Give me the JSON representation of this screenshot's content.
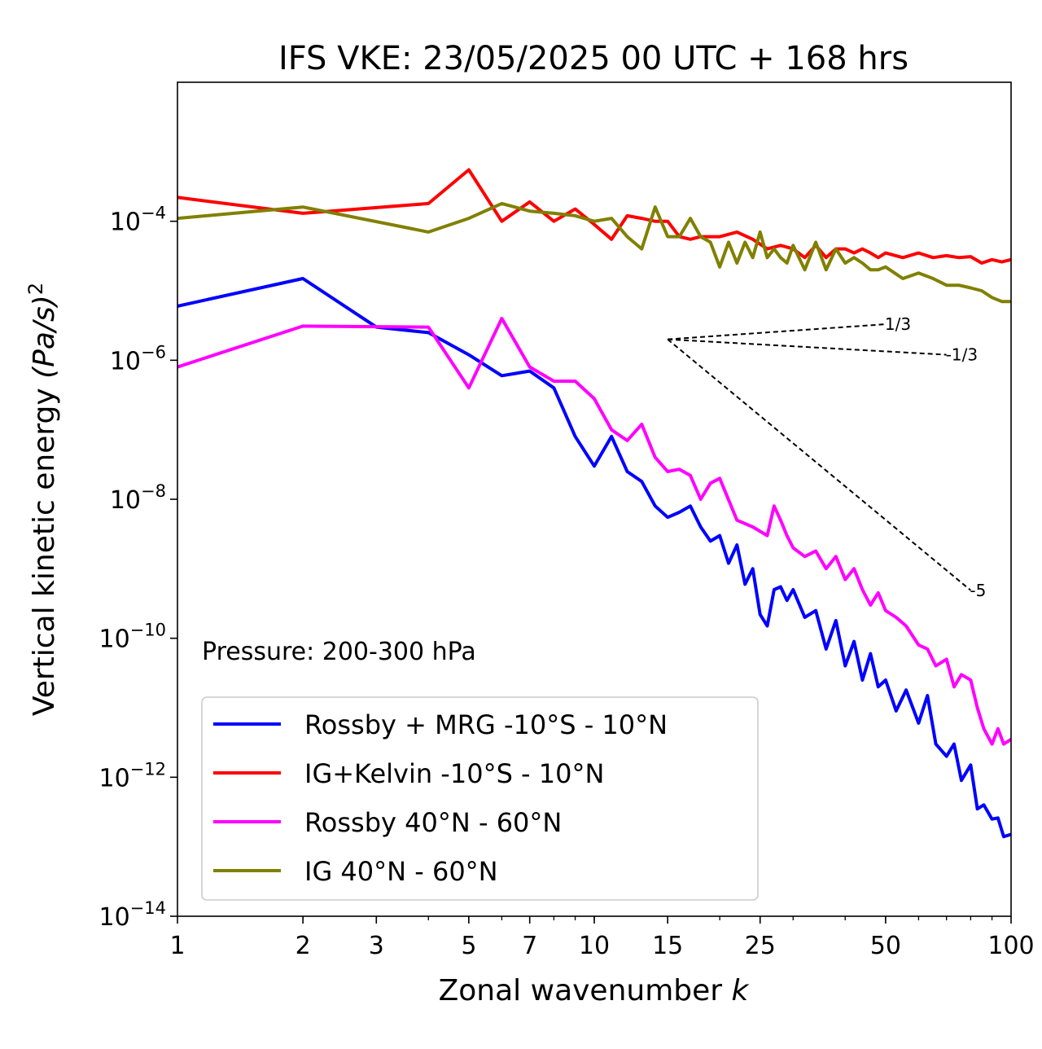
{
  "chart_data": {
    "type": "line",
    "title": "IFS VKE: 23/05/2025 00 UTC + 168 hrs",
    "xlabel_text": "Zonal wavenumber ",
    "xlabel_italic": "k",
    "ylabel_text": "Vertical kinetic energy ",
    "ylabel_italic": "(Pa/s)",
    "ylabel_sup": "2",
    "xscale": "log",
    "yscale": "log",
    "xlim": [
      1,
      100
    ],
    "ylim": [
      1e-14,
      0.01
    ],
    "x_ticks": [
      {
        "value": 1,
        "label": "1"
      },
      {
        "value": 2,
        "label": "2"
      },
      {
        "value": 3,
        "label": "3"
      },
      {
        "value": 5,
        "label": "5"
      },
      {
        "value": 7,
        "label": "7"
      },
      {
        "value": 10,
        "label": "10"
      },
      {
        "value": 15,
        "label": "15"
      },
      {
        "value": 25,
        "label": "25"
      },
      {
        "value": 50,
        "label": "50"
      },
      {
        "value": 100,
        "label": "100"
      }
    ],
    "y_ticks": [
      {
        "value": 0.0001,
        "base": "10",
        "exp": "−4"
      },
      {
        "value": 1e-06,
        "base": "10",
        "exp": "−6"
      },
      {
        "value": 1e-08,
        "base": "10",
        "exp": "−8"
      },
      {
        "value": 1e-10,
        "base": "10",
        "exp": "−10"
      },
      {
        "value": 1e-12,
        "base": "10",
        "exp": "−12"
      },
      {
        "value": 1e-14,
        "base": "10",
        "exp": "−14"
      }
    ],
    "annotation": "Pressure: 200-300 hPa",
    "legend_position": "lower-left",
    "grid": false,
    "reference_lines": [
      {
        "label": "1/3",
        "x": [
          15,
          50
        ],
        "y": [
          2e-06,
          3.3e-06
        ]
      },
      {
        "label": "-1/3",
        "x": [
          15,
          70
        ],
        "y": [
          2e-06,
          1.2e-06
        ]
      },
      {
        "label": "-5",
        "x": [
          15,
          80
        ],
        "y": [
          2e-06,
          4.9e-10
        ]
      }
    ],
    "series": [
      {
        "name": "Rossby + MRG -10°S - 10°N",
        "color": "#0000ff",
        "x": [
          1,
          2,
          3,
          4,
          5,
          6,
          7,
          8,
          9,
          10,
          11,
          12,
          13,
          14,
          15,
          16,
          17,
          18,
          19,
          20,
          21,
          22,
          23,
          24,
          25,
          26,
          27,
          28,
          29,
          30,
          32,
          34,
          36,
          38,
          40,
          42,
          44,
          46,
          48,
          50,
          53,
          56,
          60,
          63,
          66,
          70,
          73,
          76,
          80,
          83,
          86,
          90,
          93,
          96,
          100
        ],
        "y": [
          6e-06,
          1.5e-05,
          3e-06,
          2.5e-06,
          1.2e-06,
          6e-07,
          7e-07,
          4e-07,
          8e-08,
          3e-08,
          8e-08,
          2.5e-08,
          1.8e-08,
          8e-09,
          5.5e-09,
          6.5e-09,
          8e-09,
          4e-09,
          2.5e-09,
          3e-09,
          1.2e-09,
          2.2e-09,
          6e-10,
          1e-09,
          2.2e-10,
          1.5e-10,
          5e-10,
          5.5e-10,
          3.5e-10,
          5e-10,
          2e-10,
          2.5e-10,
          7e-11,
          1.8e-10,
          4e-11,
          9e-11,
          2.5e-11,
          6e-11,
          2e-11,
          2.5e-11,
          9e-12,
          1.8e-11,
          6e-12,
          1.5e-11,
          3e-12,
          2e-12,
          3e-12,
          9e-13,
          1.5e-12,
          3.5e-13,
          4e-13,
          2.5e-13,
          2.6e-13,
          1.4e-13,
          1.5e-13
        ]
      },
      {
        "name": "IG+Kelvin -10°S - 10°N",
        "color": "#ff0000",
        "x": [
          1,
          2,
          4,
          5,
          6,
          7,
          8,
          9,
          10,
          11,
          12,
          13,
          14,
          15,
          16,
          17,
          18,
          20,
          22,
          24,
          26,
          28,
          30,
          32,
          34,
          36,
          38,
          40,
          42,
          44,
          46,
          48,
          50,
          55,
          60,
          65,
          70,
          75,
          80,
          85,
          90,
          95,
          100
        ],
        "y": [
          0.00022,
          0.00013,
          0.00018,
          0.00055,
          0.0001,
          0.00019,
          0.0001,
          0.00015,
          9e-05,
          5.5e-05,
          0.00012,
          0.00011,
          0.0001,
          0.0001,
          6e-05,
          5.5e-05,
          6e-05,
          6e-05,
          7e-05,
          5.5e-05,
          4e-05,
          4.5e-05,
          4e-05,
          3e-05,
          4.5e-05,
          3e-05,
          4e-05,
          4e-05,
          3.5e-05,
          4e-05,
          3.5e-05,
          3e-05,
          3.5e-05,
          3e-05,
          3.5e-05,
          3e-05,
          3.2e-05,
          3e-05,
          3.1e-05,
          2.5e-05,
          2.8e-05,
          2.6e-05,
          2.8e-05
        ]
      },
      {
        "name": "Rossby 40°N - 60°N",
        "color": "#ff00ff",
        "x": [
          1,
          2,
          4,
          5,
          6,
          7,
          8,
          9,
          10,
          11,
          12,
          13,
          14,
          15,
          16,
          17,
          18,
          19,
          20,
          22,
          24,
          26,
          27,
          28,
          29,
          30,
          32,
          34,
          36,
          38,
          40,
          42,
          44,
          46,
          48,
          50,
          53,
          56,
          60,
          63,
          66,
          70,
          73,
          76,
          80,
          83,
          86,
          90,
          93,
          96,
          100
        ],
        "y": [
          8e-07,
          3.1e-06,
          3e-06,
          4e-07,
          4e-06,
          8e-07,
          5e-07,
          5e-07,
          2.8e-07,
          1e-07,
          7e-08,
          1.2e-07,
          4e-08,
          2.5e-08,
          2.7e-08,
          2.2e-08,
          1e-08,
          1.7e-08,
          2e-08,
          5e-09,
          4e-09,
          3e-09,
          8e-09,
          5e-09,
          3e-09,
          2e-09,
          1.5e-09,
          1.8e-09,
          1e-09,
          1.5e-09,
          7e-10,
          1e-09,
          5e-10,
          3e-10,
          4.5e-10,
          2.5e-10,
          2e-10,
          1.5e-10,
          8e-11,
          7e-11,
          4e-11,
          5e-11,
          2e-11,
          3e-11,
          2.5e-11,
          1e-11,
          5e-12,
          3e-12,
          5e-12,
          3e-12,
          3.5e-12
        ]
      },
      {
        "name": "IG 40°N - 60°N",
        "color": "#808000",
        "x": [
          1,
          2,
          4,
          5,
          6,
          7,
          8,
          9,
          10,
          11,
          12,
          13,
          14,
          15,
          16,
          17,
          18,
          19,
          20,
          21,
          22,
          23,
          24,
          25,
          26,
          27,
          28,
          29,
          30,
          32,
          34,
          36,
          38,
          40,
          42,
          44,
          46,
          48,
          50,
          55,
          60,
          65,
          70,
          75,
          80,
          85,
          90,
          95,
          100
        ],
        "y": [
          0.00011,
          0.00016,
          7e-05,
          0.00011,
          0.00018,
          0.00014,
          0.00013,
          0.00012,
          0.0001,
          0.00011,
          6e-05,
          4e-05,
          0.00016,
          6e-05,
          6e-05,
          0.00011,
          6e-05,
          5e-05,
          2.2e-05,
          5e-05,
          2.5e-05,
          5e-05,
          3e-05,
          7e-05,
          3e-05,
          4e-05,
          3e-05,
          2.5e-05,
          4.5e-05,
          2e-05,
          5e-05,
          2e-05,
          4e-05,
          2.5e-05,
          3e-05,
          2.5e-05,
          2e-05,
          2e-05,
          2.2e-05,
          1.5e-05,
          1.8e-05,
          1.5e-05,
          1.2e-05,
          1.2e-05,
          1.1e-05,
          1e-05,
          8e-06,
          7e-06,
          7e-06
        ]
      }
    ]
  }
}
